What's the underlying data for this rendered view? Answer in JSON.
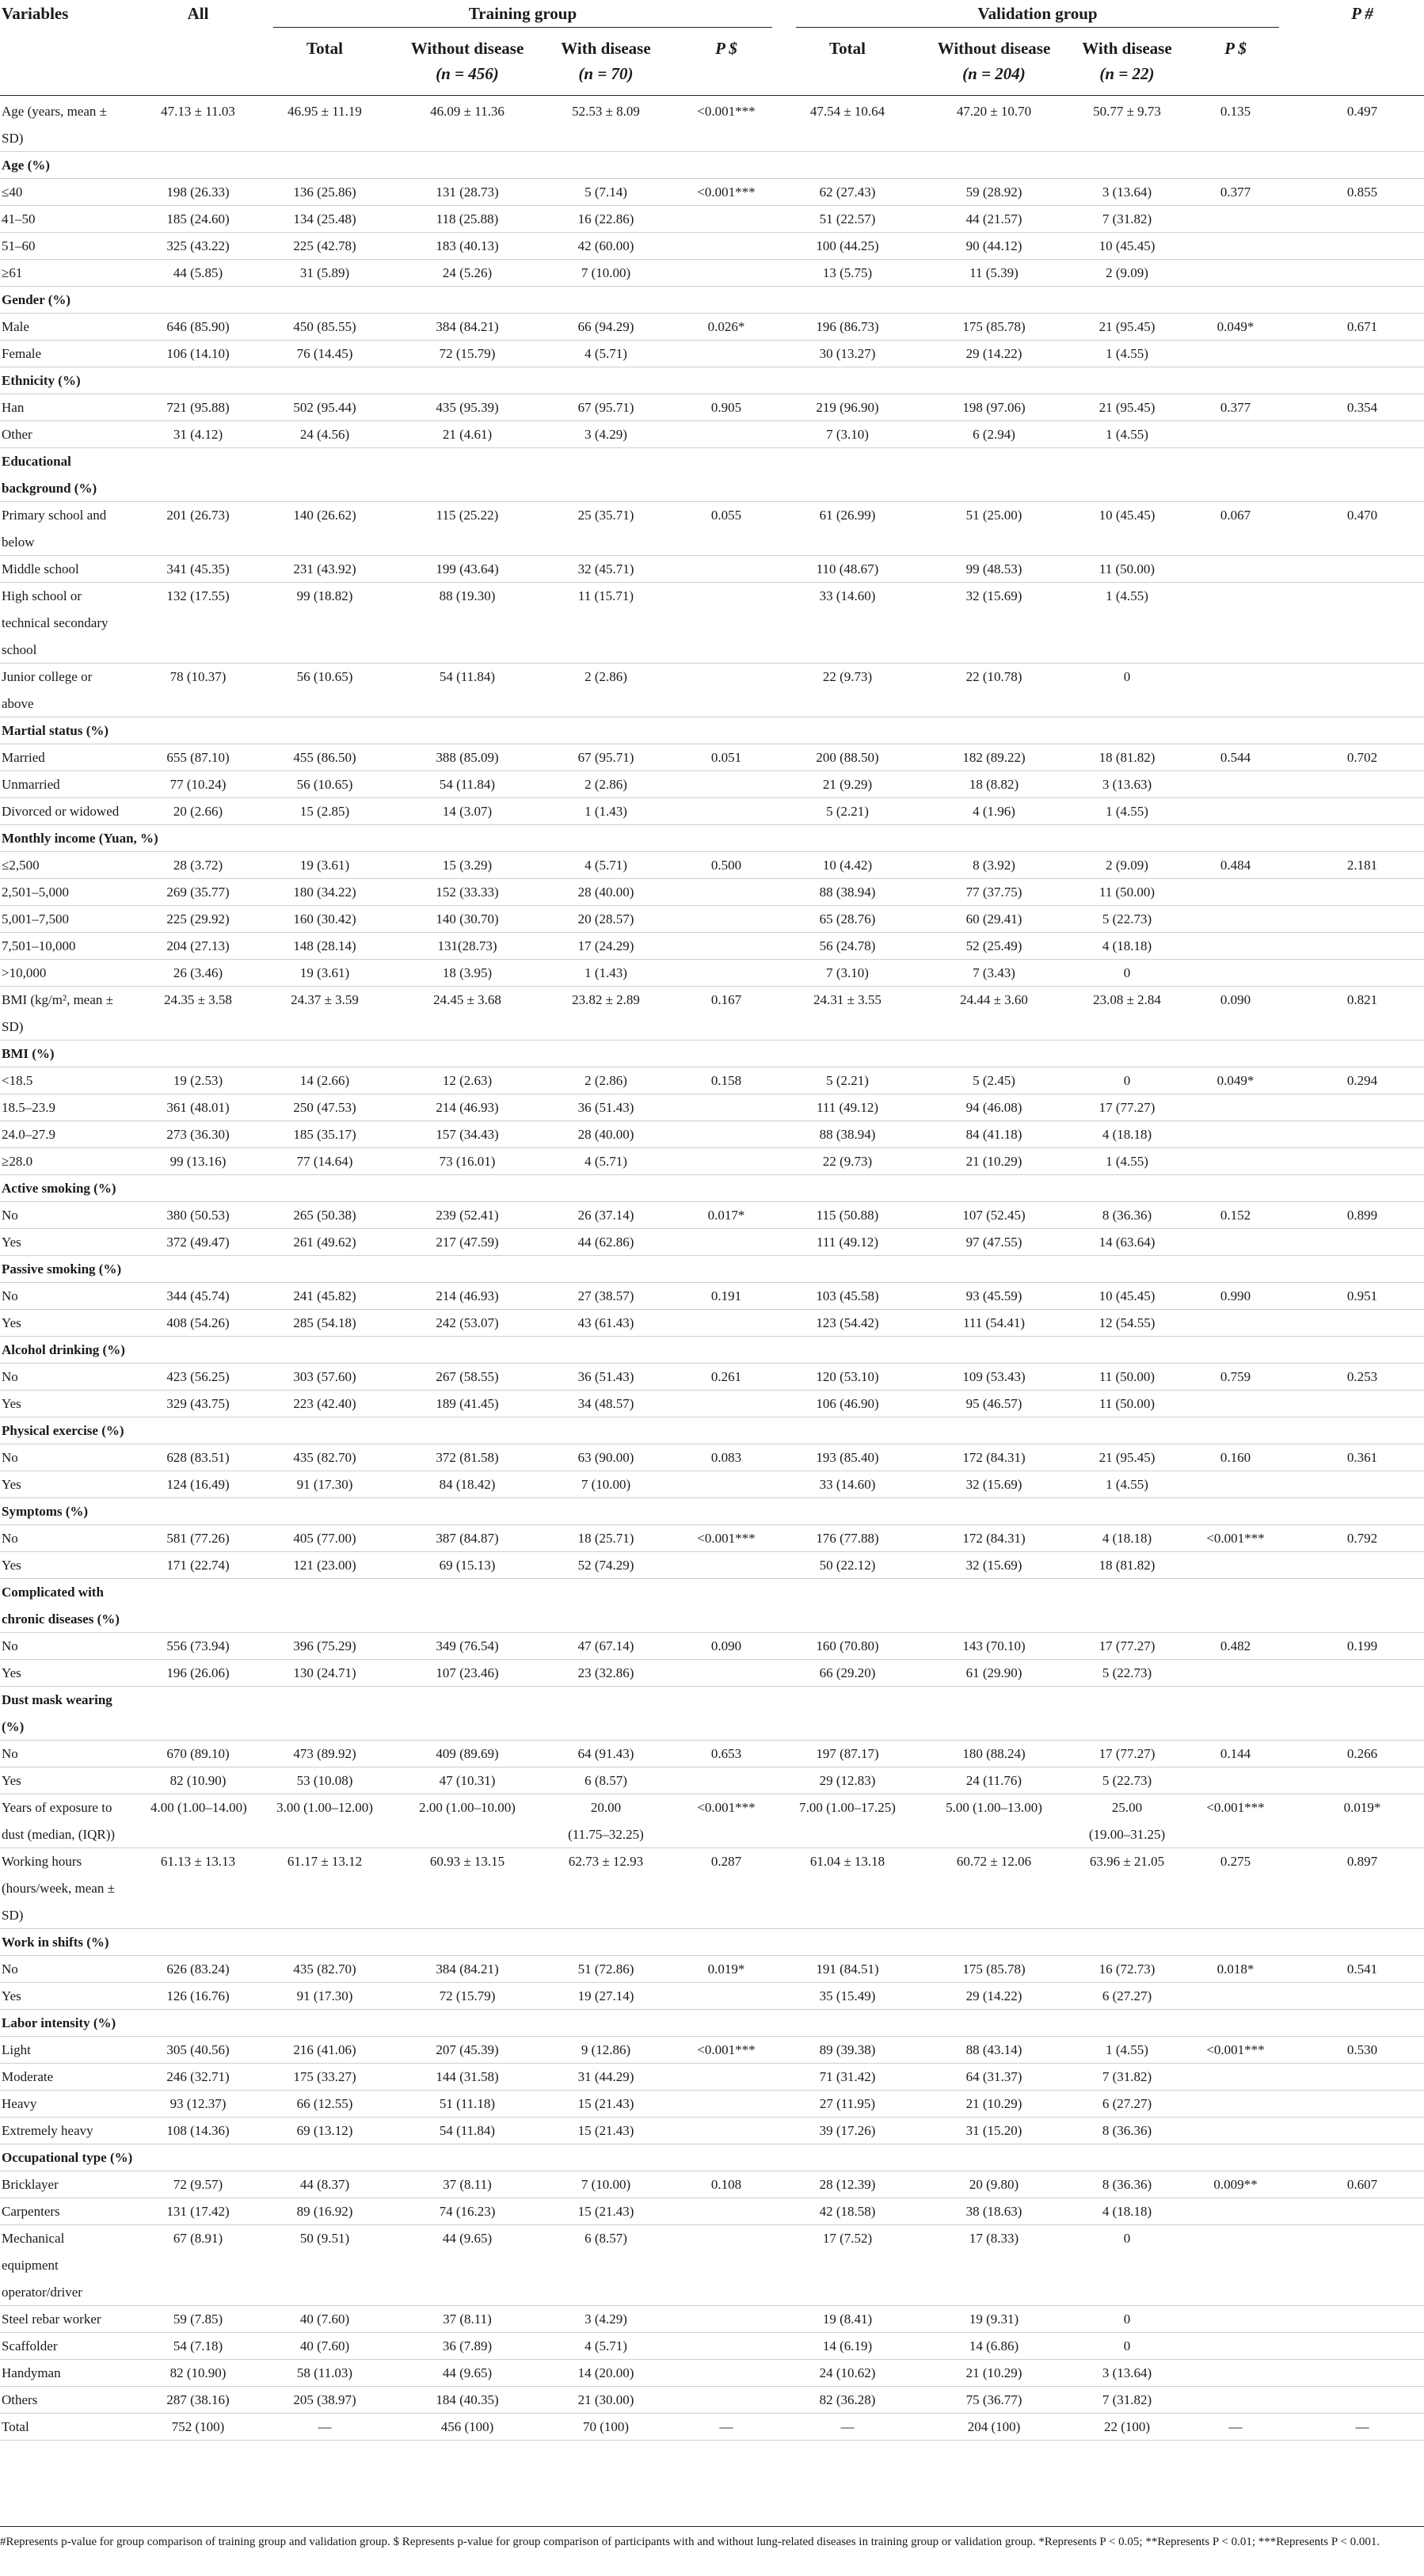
{
  "header": {
    "variables": "Variables",
    "all": "All",
    "training_group": "Training group",
    "validation_group": "Validation group",
    "p_overall": "P #",
    "total": "Total",
    "without_disease": "Without disease",
    "with_disease": "With disease",
    "p_group": "P $",
    "training_without_n": "(n = 456)",
    "training_with_n": "(n = 70)",
    "validation_without_n": "(n = 204)",
    "validation_with_n": "(n =  22)"
  },
  "rows": [
    {
      "label": [
        "Age (years, mean ±",
        "SD)"
      ],
      "values": [
        "47.13 ± 11.03",
        "46.95 ± 11.19",
        "46.09 ± 11.36",
        "52.53 ± 8.09",
        "<0.001***",
        "47.54 ± 10.64",
        "47.20 ± 10.70",
        "50.77 ± 9.73",
        "0.135",
        "0.497"
      ]
    },
    {
      "label": [
        "Age (%)"
      ],
      "section": true
    },
    {
      "label": [
        "≤40"
      ],
      "values": [
        "198 (26.33)",
        "136 (25.86)",
        "131 (28.73)",
        "5 (7.14)",
        "<0.001***",
        "62 (27.43)",
        "59 (28.92)",
        "3 (13.64)",
        "0.377",
        "0.855"
      ]
    },
    {
      "label": [
        "41–50"
      ],
      "values": [
        "185 (24.60)",
        "134 (25.48)",
        "118 (25.88)",
        "16 (22.86)",
        "",
        "51 (22.57)",
        "44 (21.57)",
        "7 (31.82)",
        "",
        ""
      ]
    },
    {
      "label": [
        "51–60"
      ],
      "values": [
        "325 (43.22)",
        "225 (42.78)",
        "183 (40.13)",
        "42 (60.00)",
        "",
        "100 (44.25)",
        "90 (44.12)",
        "10 (45.45)",
        "",
        ""
      ]
    },
    {
      "label": [
        "≥61"
      ],
      "values": [
        "44 (5.85)",
        "31 (5.89)",
        "24 (5.26)",
        "7 (10.00)",
        "",
        "13 (5.75)",
        "11 (5.39)",
        "2 (9.09)",
        "",
        ""
      ]
    },
    {
      "label": [
        "Gender (%)"
      ],
      "section": true
    },
    {
      "label": [
        "Male"
      ],
      "values": [
        "646 (85.90)",
        "450 (85.55)",
        "384 (84.21)",
        "66 (94.29)",
        "0.026*",
        "196 (86.73)",
        "175 (85.78)",
        "21 (95.45)",
        "0.049*",
        "0.671"
      ]
    },
    {
      "label": [
        "Female"
      ],
      "values": [
        "106 (14.10)",
        "76 (14.45)",
        "72 (15.79)",
        "4 (5.71)",
        "",
        "30 (13.27)",
        "29 (14.22)",
        "1 (4.55)",
        "",
        ""
      ]
    },
    {
      "label": [
        "Ethnicity (%)"
      ],
      "section": true
    },
    {
      "label": [
        "Han"
      ],
      "values": [
        "721 (95.88)",
        "502 (95.44)",
        "435 (95.39)",
        "67 (95.71)",
        "0.905",
        "219 (96.90)",
        "198 (97.06)",
        "21 (95.45)",
        "0.377",
        "0.354"
      ]
    },
    {
      "label": [
        "Other"
      ],
      "values": [
        "31 (4.12)",
        "24 (4.56)",
        "21 (4.61)",
        "3 (4.29)",
        "",
        "7 (3.10)",
        "6 (2.94)",
        "1 (4.55)",
        "",
        ""
      ]
    },
    {
      "label": [
        "Educational",
        "background (%)"
      ],
      "section": true
    },
    {
      "label": [
        "Primary school and",
        "below"
      ],
      "values": [
        "201 (26.73)",
        "140 (26.62)",
        "115 (25.22)",
        "25 (35.71)",
        "0.055",
        "61 (26.99)",
        "51 (25.00)",
        "10 (45.45)",
        "0.067",
        "0.470"
      ]
    },
    {
      "label": [
        "Middle school"
      ],
      "values": [
        "341 (45.35)",
        "231 (43.92)",
        "199 (43.64)",
        "32 (45.71)",
        "",
        "110 (48.67)",
        "99 (48.53)",
        "11 (50.00)",
        "",
        ""
      ]
    },
    {
      "label": [
        "High school or",
        "technical secondary",
        "school"
      ],
      "values": [
        "132 (17.55)",
        "99 (18.82)",
        "88 (19.30)",
        "11 (15.71)",
        "",
        "33 (14.60)",
        "32 (15.69)",
        "1 (4.55)",
        "",
        ""
      ]
    },
    {
      "label": [
        "Junior college or",
        "above"
      ],
      "values": [
        "78 (10.37)",
        "56 (10.65)",
        "54 (11.84)",
        "2 (2.86)",
        "",
        "22 (9.73)",
        "22 (10.78)",
        "0",
        "",
        ""
      ]
    },
    {
      "label": [
        "Martial status (%)"
      ],
      "section": true
    },
    {
      "label": [
        "Married"
      ],
      "values": [
        "655 (87.10)",
        "455 (86.50)",
        "388 (85.09)",
        "67 (95.71)",
        "0.051",
        "200 (88.50)",
        "182 (89.22)",
        "18 (81.82)",
        "0.544",
        "0.702"
      ]
    },
    {
      "label": [
        "Unmarried"
      ],
      "values": [
        "77 (10.24)",
        "56 (10.65)",
        "54 (11.84)",
        "2 (2.86)",
        "",
        "21 (9.29)",
        "18 (8.82)",
        "3 (13.63)",
        "",
        ""
      ]
    },
    {
      "label": [
        "Divorced or widowed"
      ],
      "values": [
        "20 (2.66)",
        "15 (2.85)",
        "14 (3.07)",
        "1 (1.43)",
        "",
        "5 (2.21)",
        "4 (1.96)",
        "1 (4.55)",
        "",
        ""
      ]
    },
    {
      "label": [
        "Monthly income (Yuan, %)"
      ],
      "section": true
    },
    {
      "label": [
        "≤2,500"
      ],
      "values": [
        "28 (3.72)",
        "19 (3.61)",
        "15 (3.29)",
        "4 (5.71)",
        "0.500",
        "10 (4.42)",
        "8 (3.92)",
        "2 (9.09)",
        "0.484",
        "2.181"
      ]
    },
    {
      "label": [
        "2,501–5,000"
      ],
      "values": [
        "269 (35.77)",
        "180 (34.22)",
        "152 (33.33)",
        "28 (40.00)",
        "",
        "88 (38.94)",
        "77 (37.75)",
        "11 (50.00)",
        "",
        ""
      ]
    },
    {
      "label": [
        "5,001–7,500"
      ],
      "values": [
        "225 (29.92)",
        "160 (30.42)",
        "140 (30.70)",
        "20 (28.57)",
        "",
        "65 (28.76)",
        "60 (29.41)",
        "5 (22.73)",
        "",
        ""
      ]
    },
    {
      "label": [
        "7,501–10,000"
      ],
      "values": [
        "204 (27.13)",
        "148 (28.14)",
        "131(28.73)",
        "17 (24.29)",
        "",
        "56 (24.78)",
        "52 (25.49)",
        "4 (18.18)",
        "",
        ""
      ]
    },
    {
      "label": [
        ">10,000"
      ],
      "values": [
        "26 (3.46)",
        "19 (3.61)",
        "18 (3.95)",
        "1 (1.43)",
        "",
        "7 (3.10)",
        "7 (3.43)",
        "0",
        "",
        ""
      ]
    },
    {
      "label": [
        "BMI (kg/m², mean ±",
        "SD)"
      ],
      "values": [
        "24.35 ± 3.58",
        "24.37 ± 3.59",
        "24.45 ± 3.68",
        "23.82 ± 2.89",
        "0.167",
        "24.31 ± 3.55",
        "24.44 ± 3.60",
        "23.08 ± 2.84",
        "0.090",
        "0.821"
      ]
    },
    {
      "label": [
        "BMI (%)"
      ],
      "section": true
    },
    {
      "label": [
        "<18.5"
      ],
      "values": [
        "19 (2.53)",
        "14 (2.66)",
        "12 (2.63)",
        "2 (2.86)",
        "0.158",
        "5 (2.21)",
        "5 (2.45)",
        "0",
        "0.049*",
        "0.294"
      ]
    },
    {
      "label": [
        "18.5–23.9"
      ],
      "values": [
        "361 (48.01)",
        "250 (47.53)",
        "214 (46.93)",
        "36 (51.43)",
        "",
        "111 (49.12)",
        "94 (46.08)",
        "17 (77.27)",
        "",
        ""
      ]
    },
    {
      "label": [
        "24.0–27.9"
      ],
      "values": [
        "273 (36.30)",
        "185 (35.17)",
        "157 (34.43)",
        "28 (40.00)",
        "",
        "88 (38.94)",
        "84 (41.18)",
        "4 (18.18)",
        "",
        ""
      ]
    },
    {
      "label": [
        "≥28.0"
      ],
      "values": [
        "99 (13.16)",
        "77 (14.64)",
        "73 (16.01)",
        "4 (5.71)",
        "",
        "22 (9.73)",
        "21 (10.29)",
        "1 (4.55)",
        "",
        ""
      ]
    },
    {
      "label": [
        "Active smoking (%)"
      ],
      "section": true
    },
    {
      "label": [
        "No"
      ],
      "values": [
        "380 (50.53)",
        "265 (50.38)",
        "239 (52.41)",
        "26 (37.14)",
        "0.017*",
        "115 (50.88)",
        "107 (52.45)",
        "8 (36.36)",
        "0.152",
        "0.899"
      ]
    },
    {
      "label": [
        "Yes"
      ],
      "values": [
        "372 (49.47)",
        "261 (49.62)",
        "217 (47.59)",
        "44 (62.86)",
        "",
        "111 (49.12)",
        "97 (47.55)",
        "14 (63.64)",
        "",
        ""
      ]
    },
    {
      "label": [
        "Passive smoking (%)"
      ],
      "section": true
    },
    {
      "label": [
        "No"
      ],
      "values": [
        "344 (45.74)",
        "241 (45.82)",
        "214 (46.93)",
        "27 (38.57)",
        "0.191",
        "103 (45.58)",
        "93 (45.59)",
        "10 (45.45)",
        "0.990",
        "0.951"
      ]
    },
    {
      "label": [
        "Yes"
      ],
      "values": [
        "408 (54.26)",
        "285 (54.18)",
        "242 (53.07)",
        "43 (61.43)",
        "",
        "123 (54.42)",
        "111 (54.41)",
        "12 (54.55)",
        "",
        ""
      ]
    },
    {
      "label": [
        "Alcohol drinking (%)"
      ],
      "section": true
    },
    {
      "label": [
        "No"
      ],
      "values": [
        "423 (56.25)",
        "303 (57.60)",
        "267 (58.55)",
        "36 (51.43)",
        "0.261",
        "120 (53.10)",
        "109 (53.43)",
        "11 (50.00)",
        "0.759",
        "0.253"
      ]
    },
    {
      "label": [
        "Yes"
      ],
      "values": [
        "329 (43.75)",
        "223 (42.40)",
        "189 (41.45)",
        "34 (48.57)",
        "",
        "106 (46.90)",
        "95 (46.57)",
        "11 (50.00)",
        "",
        ""
      ]
    },
    {
      "label": [
        "Physical exercise (%)"
      ],
      "section": true
    },
    {
      "label": [
        "No"
      ],
      "values": [
        "628 (83.51)",
        "435 (82.70)",
        "372 (81.58)",
        "63 (90.00)",
        "0.083",
        "193 (85.40)",
        "172 (84.31)",
        "21 (95.45)",
        "0.160",
        "0.361"
      ]
    },
    {
      "label": [
        "Yes"
      ],
      "values": [
        "124 (16.49)",
        "91 (17.30)",
        "84 (18.42)",
        "7 (10.00)",
        "",
        "33 (14.60)",
        "32 (15.69)",
        "1 (4.55)",
        "",
        ""
      ]
    },
    {
      "label": [
        "Symptoms (%)"
      ],
      "section": true
    },
    {
      "label": [
        "No"
      ],
      "values": [
        "581 (77.26)",
        "405 (77.00)",
        "387 (84.87)",
        "18 (25.71)",
        "<0.001***",
        "176 (77.88)",
        "172 (84.31)",
        "4 (18.18)",
        "<0.001***",
        "0.792"
      ]
    },
    {
      "label": [
        "Yes"
      ],
      "values": [
        "171 (22.74)",
        "121 (23.00)",
        "69 (15.13)",
        "52 (74.29)",
        "",
        "50 (22.12)",
        "32 (15.69)",
        "18 (81.82)",
        "",
        ""
      ]
    },
    {
      "label": [
        "Complicated with",
        "chronic diseases (%)"
      ],
      "section": true
    },
    {
      "label": [
        "No"
      ],
      "values": [
        "556 (73.94)",
        "396 (75.29)",
        "349 (76.54)",
        "47 (67.14)",
        "0.090",
        "160 (70.80)",
        "143 (70.10)",
        "17 (77.27)",
        "0.482",
        "0.199"
      ]
    },
    {
      "label": [
        "Yes"
      ],
      "values": [
        "196 (26.06)",
        "130 (24.71)",
        "107 (23.46)",
        "23 (32.86)",
        "",
        "66 (29.20)",
        "61 (29.90)",
        "5 (22.73)",
        "",
        ""
      ]
    },
    {
      "label": [
        "Dust mask wearing",
        "(%)"
      ],
      "section": true
    },
    {
      "label": [
        "No"
      ],
      "values": [
        "670 (89.10)",
        "473 (89.92)",
        "409 (89.69)",
        "64 (91.43)",
        "0.653",
        "197 (87.17)",
        "180 (88.24)",
        "17 (77.27)",
        "0.144",
        "0.266"
      ]
    },
    {
      "label": [
        "Yes"
      ],
      "values": [
        "82 (10.90)",
        "53 (10.08)",
        "47 (10.31)",
        "6 (8.57)",
        "",
        "29 (12.83)",
        "24 (11.76)",
        "5 (22.73)",
        "",
        ""
      ]
    },
    {
      "label": [
        "Years of exposure to",
        "dust (median, (IQR))"
      ],
      "values": [
        "4.00 (1.00–14.00)",
        "3.00 (1.00–12.00)",
        "2.00 (1.00–10.00)",
        [
          "20.00",
          "(11.75–32.25)"
        ],
        "<0.001***",
        "7.00 (1.00–17.25)",
        "5.00 (1.00–13.00)",
        [
          "25.00",
          "(19.00–31.25)"
        ],
        "<0.001***",
        "0.019*"
      ]
    },
    {
      "label": [
        "Working hours",
        "(hours/week, mean ±",
        "SD)"
      ],
      "values": [
        "61.13 ± 13.13",
        "61.17 ± 13.12",
        "60.93 ± 13.15",
        "62.73 ± 12.93",
        "0.287",
        "61.04 ± 13.18",
        "60.72 ± 12.06",
        "63.96 ± 21.05",
        "0.275",
        "0.897"
      ]
    },
    {
      "label": [
        "Work in shifts (%)"
      ],
      "section": true
    },
    {
      "label": [
        "No"
      ],
      "values": [
        "626 (83.24)",
        "435 (82.70)",
        "384 (84.21)",
        "51 (72.86)",
        "0.019*",
        "191 (84.51)",
        "175 (85.78)",
        "16 (72.73)",
        "0.018*",
        "0.541"
      ]
    },
    {
      "label": [
        "Yes"
      ],
      "values": [
        "126 (16.76)",
        "91 (17.30)",
        "72 (15.79)",
        "19 (27.14)",
        "",
        "35 (15.49)",
        "29 (14.22)",
        "6 (27.27)",
        "",
        ""
      ]
    },
    {
      "label": [
        "Labor intensity (%)"
      ],
      "section": true
    },
    {
      "label": [
        "Light"
      ],
      "values": [
        "305 (40.56)",
        "216 (41.06)",
        "207 (45.39)",
        "9 (12.86)",
        "<0.001***",
        "89 (39.38)",
        "88 (43.14)",
        "1 (4.55)",
        "<0.001***",
        "0.530"
      ]
    },
    {
      "label": [
        "Moderate"
      ],
      "values": [
        "246 (32.71)",
        "175 (33.27)",
        "144 (31.58)",
        "31 (44.29)",
        "",
        "71 (31.42)",
        "64 (31.37)",
        "7 (31.82)",
        "",
        ""
      ]
    },
    {
      "label": [
        "Heavy"
      ],
      "values": [
        "93 (12.37)",
        "66 (12.55)",
        "51 (11.18)",
        "15 (21.43)",
        "",
        "27 (11.95)",
        "21 (10.29)",
        "6 (27.27)",
        "",
        ""
      ]
    },
    {
      "label": [
        "Extremely heavy"
      ],
      "values": [
        "108 (14.36)",
        "69 (13.12)",
        "54 (11.84)",
        "15 (21.43)",
        "",
        "39 (17.26)",
        "31 (15.20)",
        "8 (36.36)",
        "",
        ""
      ]
    },
    {
      "label": [
        "Occupational type (%)"
      ],
      "section": true
    },
    {
      "label": [
        "Bricklayer"
      ],
      "values": [
        "72 (9.57)",
        "44 (8.37)",
        "37 (8.11)",
        "7 (10.00)",
        "0.108",
        "28 (12.39)",
        "20 (9.80)",
        "8 (36.36)",
        "0.009**",
        "0.607"
      ]
    },
    {
      "label": [
        "Carpenters"
      ],
      "values": [
        "131 (17.42)",
        "89 (16.92)",
        "74 (16.23)",
        "15 (21.43)",
        "",
        "42 (18.58)",
        "38 (18.63)",
        "4 (18.18)",
        "",
        ""
      ]
    },
    {
      "label": [
        "Mechanical",
        "equipment",
        "operator/driver"
      ],
      "values": [
        "67 (8.91)",
        "50 (9.51)",
        "44 (9.65)",
        "6 (8.57)",
        "",
        "17 (7.52)",
        "17 (8.33)",
        "0",
        "",
        ""
      ]
    },
    {
      "label": [
        "Steel rebar worker"
      ],
      "values": [
        "59 (7.85)",
        "40 (7.60)",
        "37 (8.11)",
        "3 (4.29)",
        "",
        "19 (8.41)",
        "19 (9.31)",
        "0",
        "",
        ""
      ]
    },
    {
      "label": [
        "Scaffolder"
      ],
      "values": [
        "54 (7.18)",
        "40 (7.60)",
        "36 (7.89)",
        "4 (5.71)",
        "",
        "14 (6.19)",
        "14 (6.86)",
        "0",
        "",
        ""
      ]
    },
    {
      "label": [
        "Handyman"
      ],
      "values": [
        "82 (10.90)",
        "58 (11.03)",
        "44 (9.65)",
        "14 (20.00)",
        "",
        "24 (10.62)",
        "21 (10.29)",
        "3 (13.64)",
        "",
        ""
      ]
    },
    {
      "label": [
        "Others"
      ],
      "values": [
        "287 (38.16)",
        "205 (38.97)",
        "184 (40.35)",
        "21 (30.00)",
        "",
        "82 (36.28)",
        "75 (36.77)",
        "7 (31.82)",
        "",
        ""
      ]
    },
    {
      "label": [
        "Total"
      ],
      "values": [
        "752 (100)",
        "—",
        "456 (100)",
        "70 (100)",
        "—",
        "—",
        "204 (100)",
        "22 (100)",
        "—",
        "—"
      ]
    }
  ],
  "footnote": "#Represents p-value for group comparison of training group and validation group. $ Represents p-value for group comparison of participants with and without lung-related diseases in training group or validation group. *Represents P < 0.05; **Represents P < 0.01; ***Represents P < 0.001."
}
